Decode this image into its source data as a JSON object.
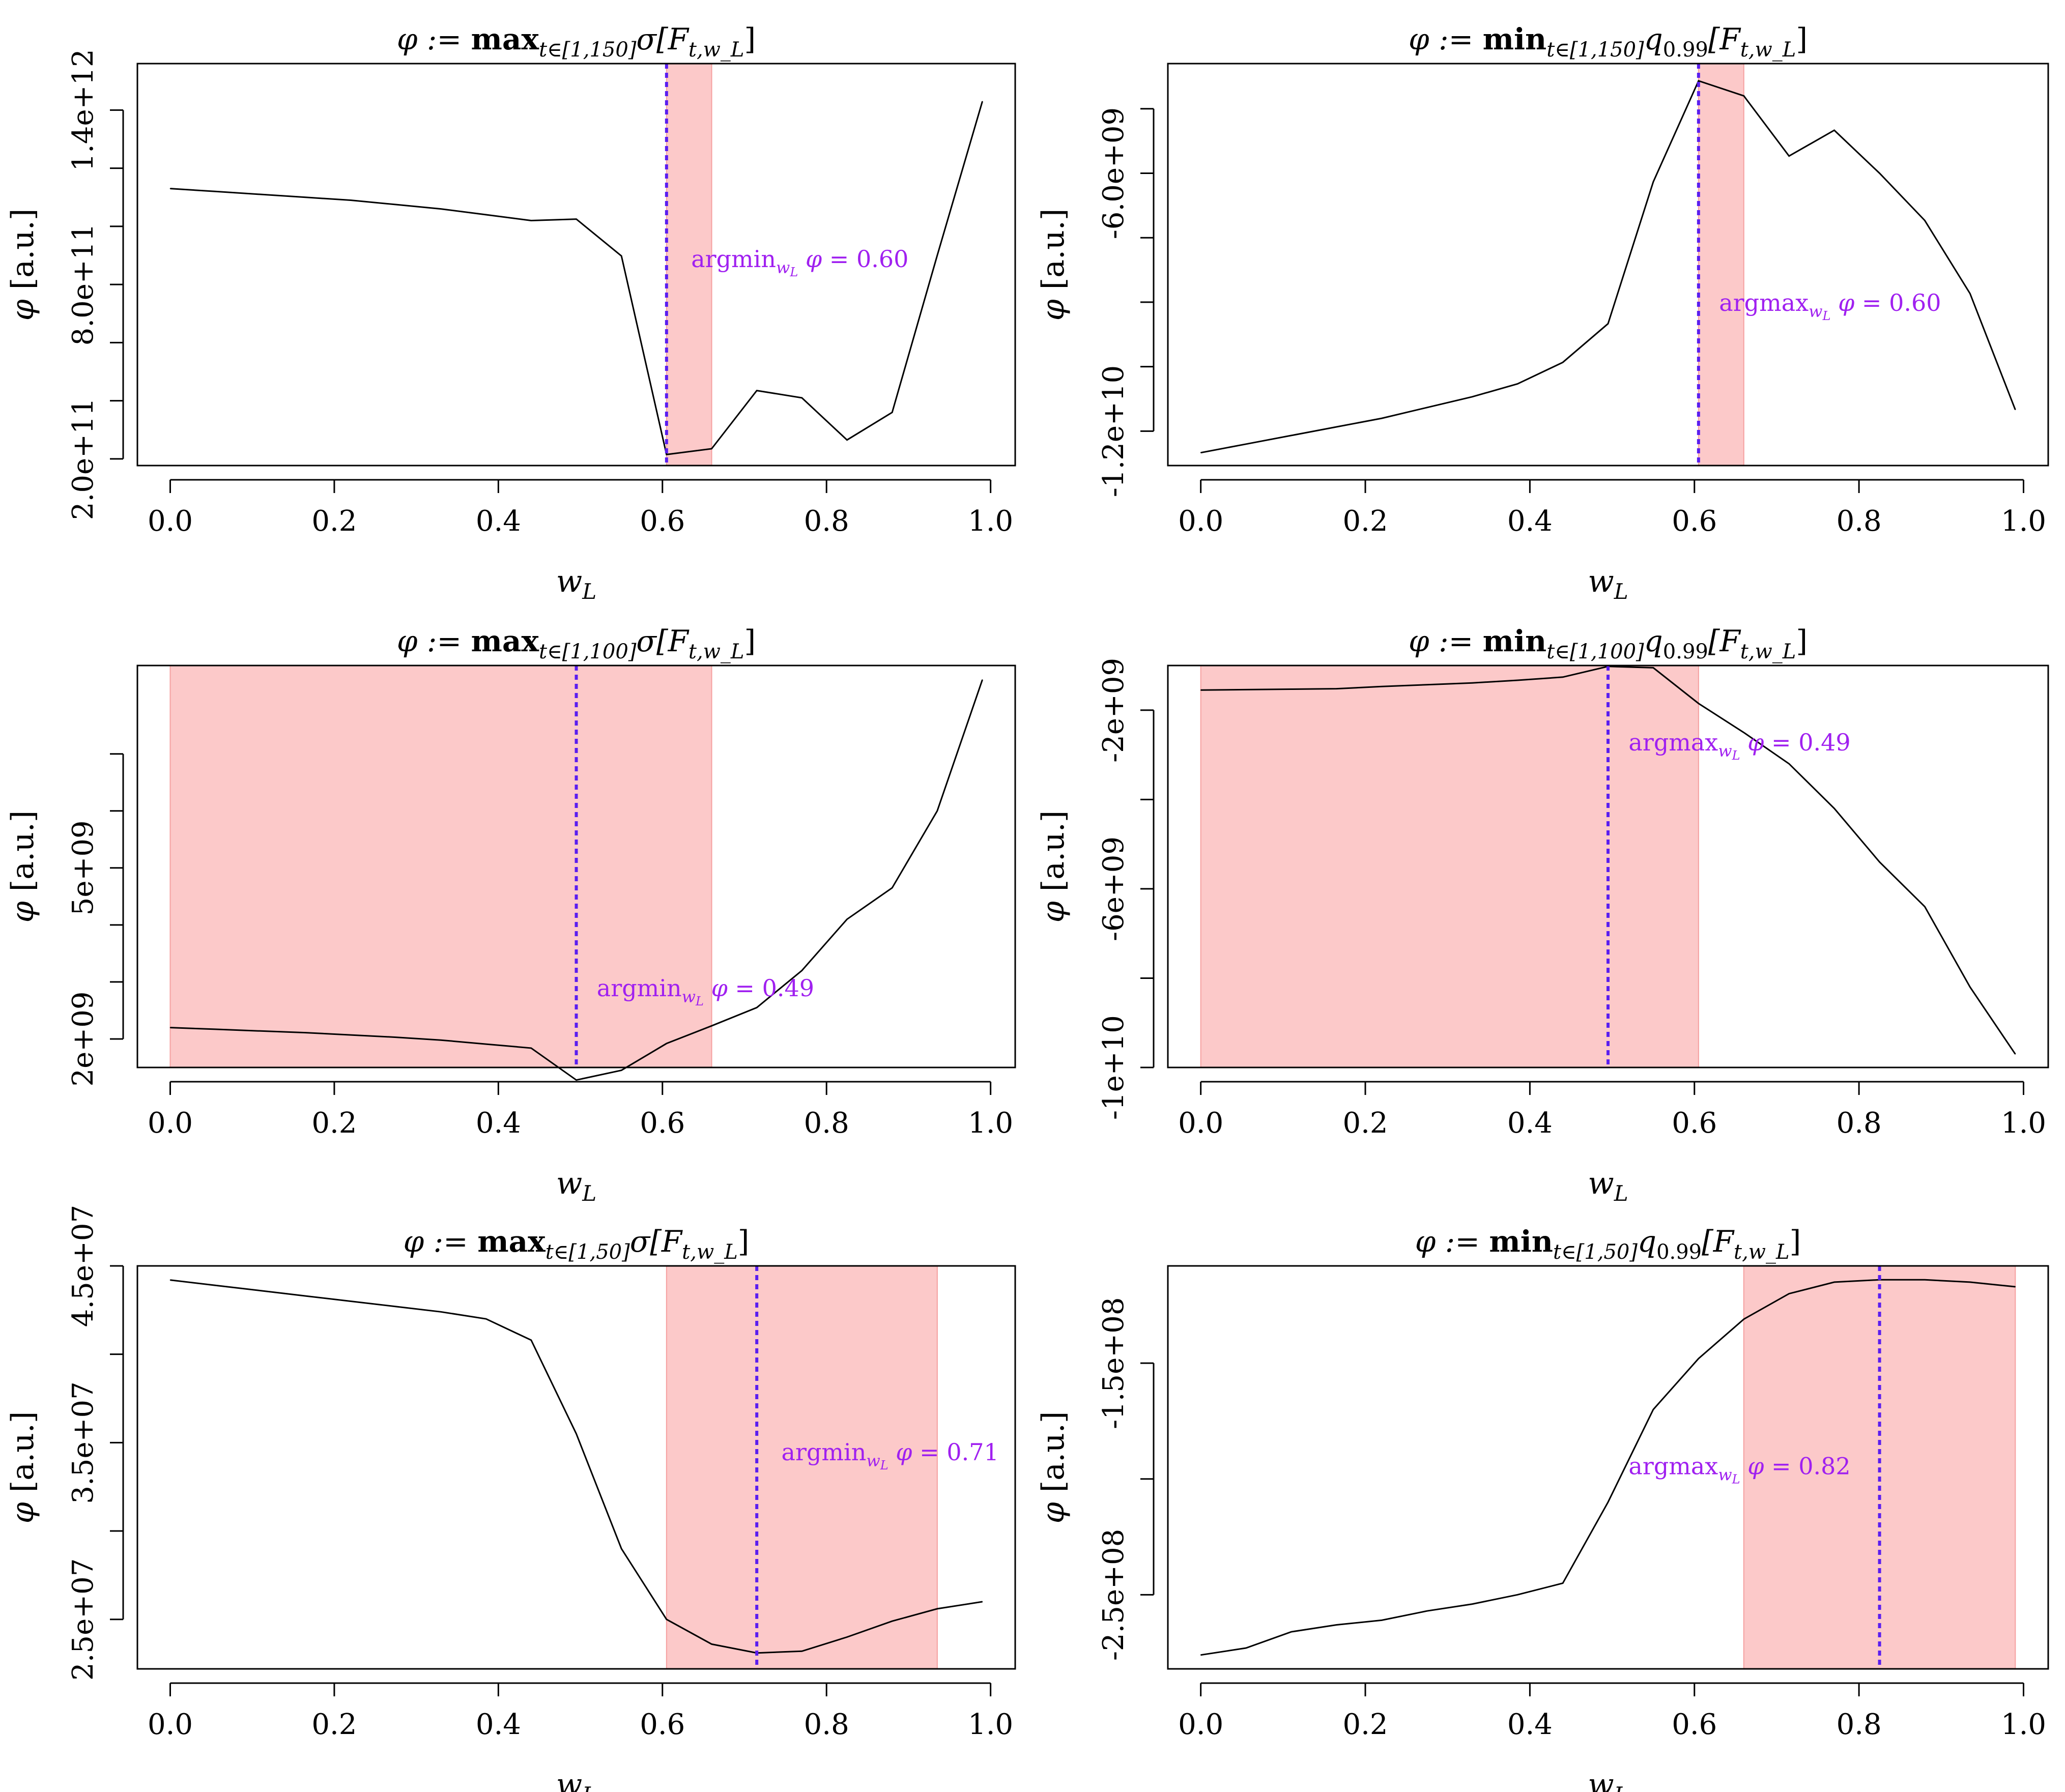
{
  "chart_data": [
    {
      "type": "line",
      "title": "φ := max_{t∈[1,150]} σ[F_{t,w_L}]",
      "xlabel": "w_L",
      "ylabel": "φ [a.u.]",
      "xlim": [
        -0.04,
        1.03
      ],
      "ylim": [
        177000000000.0,
        1560000000000.0
      ],
      "xticks": [
        0.0,
        0.2,
        0.4,
        0.6,
        0.8,
        1.0
      ],
      "xtick_labels": [
        "0.0",
        "0.2",
        "0.4",
        "0.6",
        "0.8",
        "1.0"
      ],
      "yticks": [
        200000000000.0,
        400000000000.0,
        600000000000.0,
        800000000000.0,
        1000000000000.0,
        1200000000000.0,
        1400000000000.0
      ],
      "ytick_labels": [
        "2.0e+11",
        "",
        "",
        "8.0e+11",
        "",
        "",
        "1.4e+12"
      ],
      "x": [
        0.0,
        0.055,
        0.11,
        0.165,
        0.22,
        0.275,
        0.33,
        0.385,
        0.44,
        0.495,
        0.55,
        0.605,
        0.66,
        0.715,
        0.77,
        0.825,
        0.88,
        0.935,
        0.99
      ],
      "y": [
        1130000000000.0,
        1120000000000.0,
        1110000000000.0,
        1100000000000.0,
        1090000000000.0,
        1075000000000.0,
        1060000000000.0,
        1040000000000.0,
        1020000000000.0,
        1025000000000.0,
        898000000000.0,
        215000000000.0,
        235000000000.0,
        435000000000.0,
        410000000000.0,
        265000000000.0,
        360000000000.0,
        900000000000.0,
        1430000000000.0
      ],
      "band": [
        0.605,
        0.66
      ],
      "vline": 0.605,
      "annotation": {
        "prefix": "argmin",
        "subscript": "w_L",
        "text": "φ = 0.60",
        "x": 0.635,
        "y": 860000000000.0
      },
      "grid": false
    },
    {
      "type": "line",
      "title": "φ := min_{t∈[1,150]} q_{0.99}[F_{t,w_L}]",
      "xlabel": "w_L",
      "ylabel": "φ [a.u.]",
      "xlim": [
        -0.04,
        1.03
      ],
      "ylim": [
        -12800000000.0,
        -3450000000.0
      ],
      "xticks": [
        0.0,
        0.2,
        0.4,
        0.6,
        0.8,
        1.0
      ],
      "xtick_labels": [
        "0.0",
        "0.2",
        "0.4",
        "0.6",
        "0.8",
        "1.0"
      ],
      "yticks": [
        -12000000000.0,
        -10500000000.0,
        -9000000000.0,
        -7500000000.0,
        -6000000000.0,
        -4500000000.0
      ],
      "ytick_labels": [
        "-1.2e+10",
        "",
        "",
        "",
        "-6.0e+09",
        ""
      ],
      "x": [
        0.0,
        0.055,
        0.11,
        0.165,
        0.22,
        0.275,
        0.33,
        0.385,
        0.44,
        0.495,
        0.55,
        0.605,
        0.66,
        0.715,
        0.77,
        0.825,
        0.88,
        0.935,
        0.99
      ],
      "y": [
        -12500000000.0,
        -12300000000.0,
        -12100000000.0,
        -11900000000.0,
        -11700000000.0,
        -11450000000.0,
        -11200000000.0,
        -10900000000.0,
        -10400000000.0,
        -9500000000.0,
        -6200000000.0,
        -3850000000.0,
        -4200000000.0,
        -5600000000.0,
        -5000000000.0,
        -6000000000.0,
        -7100000000.0,
        -8800000000.0,
        -11500000000.0
      ],
      "band": [
        0.605,
        0.66
      ],
      "vline": 0.605,
      "annotation": {
        "prefix": "argmax",
        "subscript": "w_L",
        "text": "φ = 0.60",
        "x": 0.63,
        "y": -9200000000.0
      },
      "grid": false
    },
    {
      "type": "line",
      "title": "φ := max_{t∈[1,100]} σ[F_{t,w_L}]",
      "xlabel": "w_L",
      "ylabel": "φ [a.u.]",
      "xlim": [
        -0.04,
        1.03
      ],
      "ylim": [
        1500000000.0,
        8550000000.0
      ],
      "xticks": [
        0.0,
        0.2,
        0.4,
        0.6,
        0.8,
        1.0
      ],
      "xtick_labels": [
        "0.0",
        "0.2",
        "0.4",
        "0.6",
        "0.8",
        "1.0"
      ],
      "yticks": [
        2000000000.0,
        3000000000.0,
        4000000000.0,
        5000000000.0,
        6000000000.0,
        7000000000.0
      ],
      "ytick_labels": [
        "2e+09",
        "",
        "",
        "5e+09",
        "",
        ""
      ],
      "x": [
        0.0,
        0.055,
        0.11,
        0.165,
        0.22,
        0.275,
        0.33,
        0.385,
        0.44,
        0.495,
        0.55,
        0.605,
        0.66,
        0.715,
        0.77,
        0.825,
        0.88,
        0.935,
        0.99
      ],
      "y": [
        2200000000.0,
        2170000000.0,
        2140000000.0,
        2110000000.0,
        2070000000.0,
        2030000000.0,
        1980000000.0,
        1910000000.0,
        1840000000.0,
        1280000000.0,
        1450000000.0,
        1920000000.0,
        2230000000.0,
        2550000000.0,
        3200000000.0,
        4100000000.0,
        4650000000.0,
        6000000000.0,
        8300000000.0
      ],
      "band": [
        0.0,
        0.66
      ],
      "vline": 0.495,
      "annotation": {
        "prefix": "argmin",
        "subscript": "w_L",
        "text": "φ = 0.49",
        "x": 0.52,
        "y": 2750000000.0
      },
      "grid": false
    },
    {
      "type": "line",
      "title": "φ := min_{t∈[1,100]} q_{0.99}[F_{t,w_L}]",
      "xlabel": "w_L",
      "ylabel": "φ [a.u.]",
      "xlim": [
        -0.04,
        1.03
      ],
      "ylim": [
        -10000000000.0,
        -1000000000.0
      ],
      "xticks": [
        0.0,
        0.2,
        0.4,
        0.6,
        0.8,
        1.0
      ],
      "xtick_labels": [
        "0.0",
        "0.2",
        "0.4",
        "0.6",
        "0.8",
        "1.0"
      ],
      "yticks": [
        -10000000000.0,
        -8000000000.0,
        -6000000000.0,
        -4000000000.0,
        -2000000000.0
      ],
      "ytick_labels": [
        "-1e+10",
        "",
        "-6e+09",
        "",
        "-2e+09"
      ],
      "x": [
        0.0,
        0.055,
        0.11,
        0.165,
        0.22,
        0.275,
        0.33,
        0.385,
        0.44,
        0.495,
        0.55,
        0.605,
        0.66,
        0.715,
        0.77,
        0.825,
        0.88,
        0.935,
        0.99
      ],
      "y": [
        -1550000000.0,
        -1540000000.0,
        -1530000000.0,
        -1520000000.0,
        -1470000000.0,
        -1430000000.0,
        -1390000000.0,
        -1330000000.0,
        -1260000000.0,
        -1020000000.0,
        -1050000000.0,
        -1850000000.0,
        -2500000000.0,
        -3200000000.0,
        -4200000000.0,
        -5400000000.0,
        -6400000000.0,
        -8200000000.0,
        -9700000000.0
      ],
      "band": [
        0.0,
        0.605
      ],
      "vline": 0.495,
      "annotation": {
        "prefix": "argmax",
        "subscript": "w_L",
        "text": "φ = 0.49",
        "x": 0.52,
        "y": -2900000000.0
      },
      "grid": false
    },
    {
      "type": "line",
      "title": "φ := max_{t∈[1,50]} σ[F_{t,w_L}]",
      "xlabel": "w_L",
      "ylabel": "φ [a.u.]",
      "xlim": [
        -0.04,
        1.03
      ],
      "ylim": [
        22200000.0,
        45000000.0
      ],
      "xticks": [
        0.0,
        0.2,
        0.4,
        0.6,
        0.8,
        1.0
      ],
      "xtick_labels": [
        "0.0",
        "0.2",
        "0.4",
        "0.6",
        "0.8",
        "1.0"
      ],
      "yticks": [
        25000000.0,
        30000000.0,
        35000000.0,
        40000000.0,
        45000000.0
      ],
      "ytick_labels": [
        "2.5e+07",
        "",
        "3.5e+07",
        "",
        "4.5e+07"
      ],
      "x": [
        0.0,
        0.055,
        0.11,
        0.165,
        0.22,
        0.275,
        0.33,
        0.385,
        0.44,
        0.495,
        0.55,
        0.605,
        0.66,
        0.715,
        0.77,
        0.825,
        0.88,
        0.935,
        0.99
      ],
      "y": [
        44200000.0,
        43900000.0,
        43600000.0,
        43300000.0,
        43000000.0,
        42700000.0,
        42400000.0,
        42000000.0,
        40800000.0,
        35500000.0,
        29000000.0,
        25000000.0,
        23600000.0,
        23100000.0,
        23200000.0,
        24000000.0,
        24900000.0,
        25600000.0,
        26000000.0
      ],
      "band": [
        0.605,
        0.935
      ],
      "vline": 0.715,
      "annotation": {
        "prefix": "argmin",
        "subscript": "w_L",
        "text": "φ = 0.71",
        "x": 0.745,
        "y": 34000000.0
      },
      "grid": false
    },
    {
      "type": "line",
      "title": "φ := min_{t∈[1,50]} q_{0.99}[F_{t,w_L}]",
      "xlabel": "w_L",
      "ylabel": "φ [a.u.]",
      "xlim": [
        -0.04,
        1.03
      ],
      "ylim": [
        -282000000.0,
        -108000000.0
      ],
      "xticks": [
        0.0,
        0.2,
        0.4,
        0.6,
        0.8,
        1.0
      ],
      "xtick_labels": [
        "0.0",
        "0.2",
        "0.4",
        "0.6",
        "0.8",
        "1.0"
      ],
      "yticks": [
        -250000000.0,
        -200000000.0,
        -150000000.0
      ],
      "ytick_labels": [
        "-2.5e+08",
        "",
        "-1.5e+08"
      ],
      "x": [
        0.0,
        0.055,
        0.11,
        0.165,
        0.22,
        0.275,
        0.33,
        0.385,
        0.44,
        0.495,
        0.55,
        0.605,
        0.66,
        0.715,
        0.77,
        0.825,
        0.88,
        0.935,
        0.99
      ],
      "y": [
        -276000000.0,
        -273000000.0,
        -266000000.0,
        -263000000.0,
        -261000000.0,
        -257000000.0,
        -254000000.0,
        -250000000.0,
        -245000000.0,
        -210000000.0,
        -170000000.0,
        -148000000.0,
        -131000000.0,
        -120000000.0,
        -115000000.0,
        -114000000.0,
        -114000000.0,
        -115000000.0,
        -117000000.0
      ],
      "band": [
        0.66,
        0.99
      ],
      "vline": 0.825,
      "annotation": {
        "prefix": "argmax",
        "subscript": "w_L",
        "text": "φ = 0.82",
        "x": 0.52,
        "y": -198000000.0
      },
      "grid": false
    }
  ]
}
